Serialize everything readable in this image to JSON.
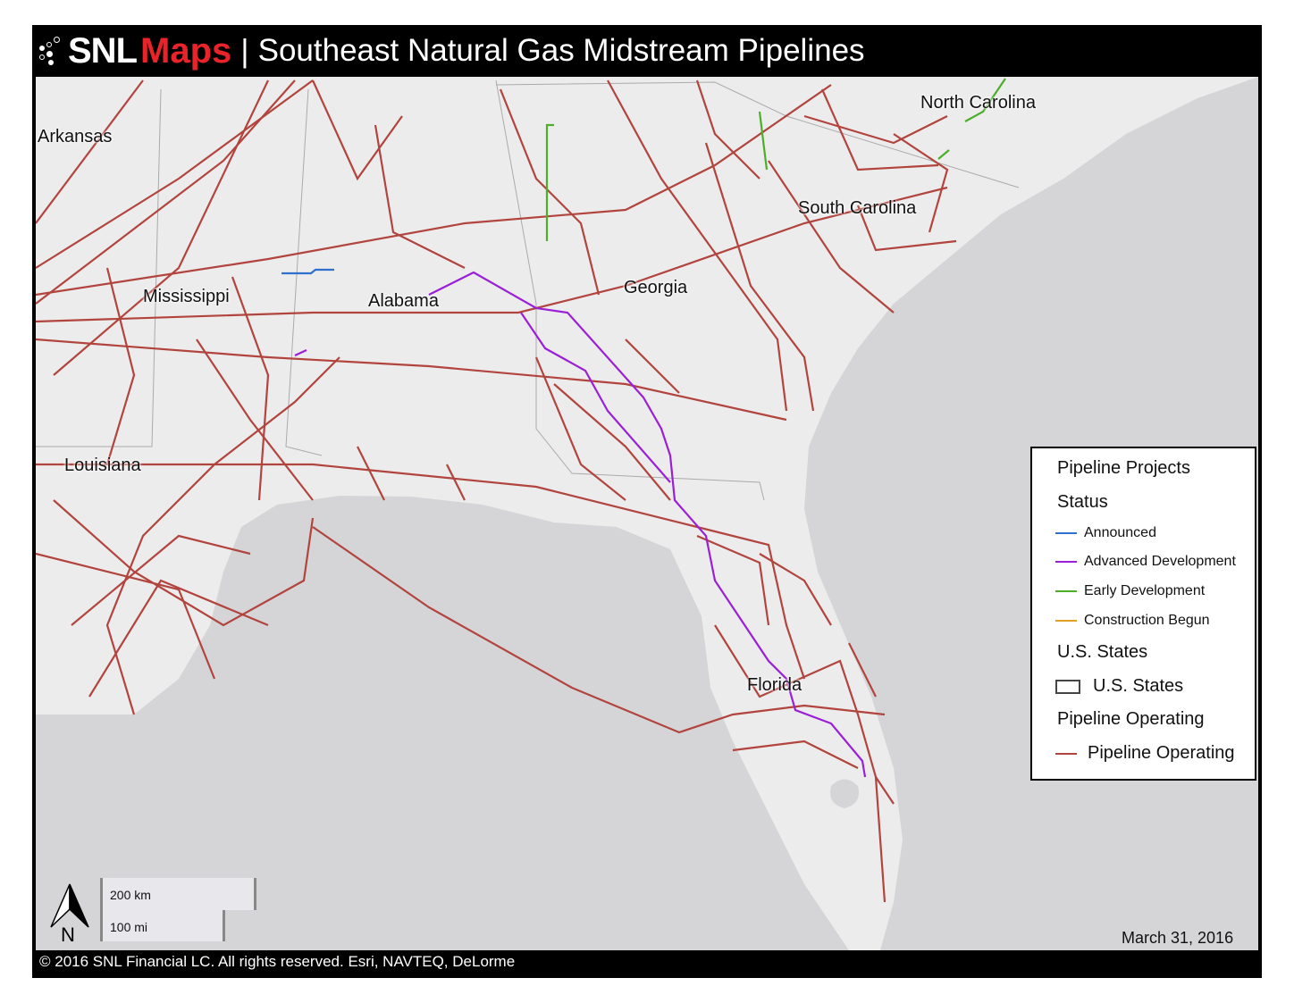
{
  "header": {
    "brand_part1": "SNL",
    "brand_part2": "Maps",
    "separator": "|",
    "title": "Southeast Natural Gas Midstream Pipelines"
  },
  "map": {
    "state_labels": [
      "Arkansas",
      "Mississippi",
      "Alabama",
      "Georgia",
      "South Carolina",
      "North Carolina",
      "Louisiana",
      "Florida"
    ],
    "colors": {
      "land": "#ececec",
      "water": "#d5d5d8",
      "pipeline_operating": "#b2443e",
      "announced": "#2f6fd0",
      "advanced_development": "#9b1fd6",
      "early_development": "#4caf2a",
      "construction_begun": "#e0a020"
    }
  },
  "legend": {
    "title": "Pipeline Projects",
    "status_heading": "Status",
    "status_items": [
      "Announced",
      "Advanced Development",
      "Early Development",
      "Construction Begun"
    ],
    "states_heading": "U.S. States",
    "states_item": "U.S. States",
    "operating_heading": "Pipeline Operating",
    "operating_item": "Pipeline Operating"
  },
  "scale_bar": {
    "km": "200 km",
    "mi": "100 mi"
  },
  "north_arrow": {
    "label": "N",
    "icon": "north-arrow-icon"
  },
  "date": "March 31, 2016",
  "footer": "© 2016 SNL Financial LC. All rights reserved. Esri, NAVTEQ, DeLorme"
}
